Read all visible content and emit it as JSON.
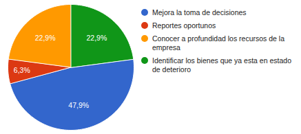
{
  "chart_data": {
    "type": "pie",
    "categories": [
      "Mejora la toma de decisiones",
      "Reportes oportunos",
      "Conocer a profundidad los recursos de la empresa",
      "Identificar los bienes que ya esta en estado de deterioro"
    ],
    "values": [
      47.9,
      6.3,
      22.9,
      22.9
    ],
    "value_labels": [
      "47,9%",
      "6,3%",
      "22,9%",
      "22,9%"
    ],
    "colors": [
      "#3366cc",
      "#dc3912",
      "#ff9900",
      "#109618"
    ],
    "data_labels": true,
    "legend": "right"
  }
}
